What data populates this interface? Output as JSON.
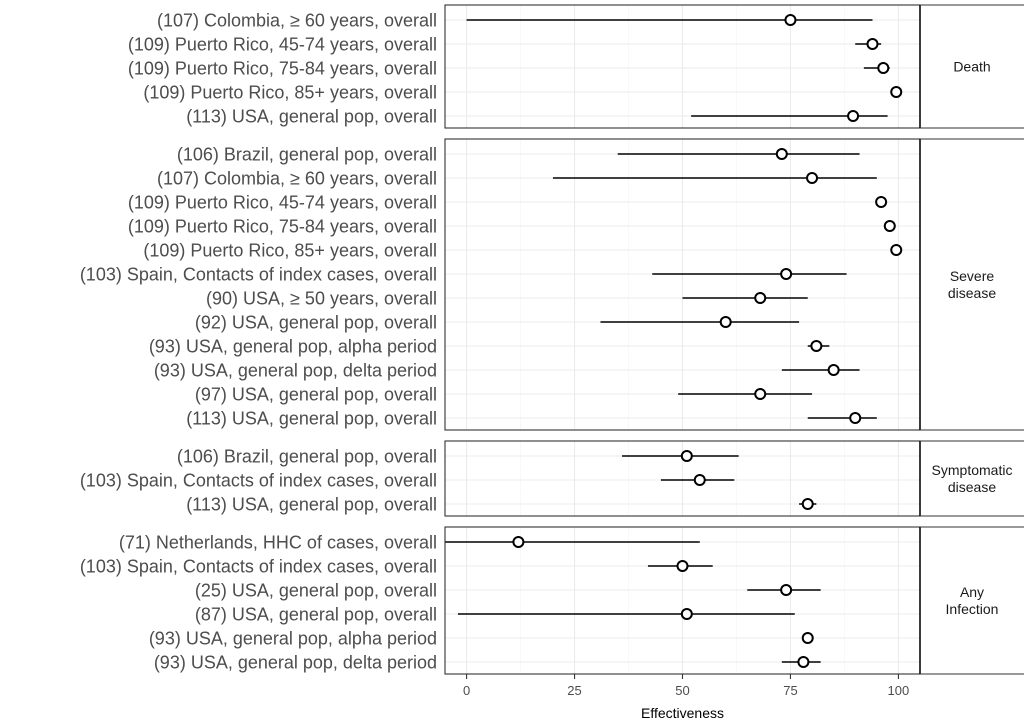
{
  "chart_data": {
    "type": "forest",
    "xlabel": "Effectiveness",
    "xlim": [
      -5,
      105
    ],
    "xticks": [
      0,
      25,
      50,
      75,
      100
    ],
    "grid": true,
    "panels": [
      {
        "label": "Death",
        "rows": [
          {
            "label": "(107) Colombia, ≥ 60 years, overall",
            "estimate": 75,
            "lower": 0,
            "upper": 94
          },
          {
            "label": "(109) Puerto Rico, 45-74 years, overall",
            "estimate": 94,
            "lower": 90,
            "upper": 96
          },
          {
            "label": "(109) Puerto Rico, 75-84 years, overall",
            "estimate": 96.5,
            "lower": 92,
            "upper": 98
          },
          {
            "label": "(109) Puerto Rico, 85+ years, overall",
            "estimate": 99.5,
            "lower": 99,
            "upper": 100
          },
          {
            "label": "(113) USA, general pop, overall",
            "estimate": 89.5,
            "lower": 52,
            "upper": 97.5
          }
        ]
      },
      {
        "label": "Severe disease",
        "rows": [
          {
            "label": "(106) Brazil, general pop, overall",
            "estimate": 73,
            "lower": 35,
            "upper": 91
          },
          {
            "label": "(107) Colombia, ≥ 60 years, overall",
            "estimate": 80,
            "lower": 20,
            "upper": 95
          },
          {
            "label": "(109) Puerto Rico, 45-74 years, overall",
            "estimate": 96,
            "lower": 95,
            "upper": 97
          },
          {
            "label": "(109) Puerto Rico, 75-84 years, overall",
            "estimate": 98,
            "lower": 97,
            "upper": 99
          },
          {
            "label": "(109) Puerto Rico, 85+ years, overall",
            "estimate": 99.5,
            "lower": 99,
            "upper": 100
          },
          {
            "label": "(103) Spain, Contacts of index cases, overall",
            "estimate": 74,
            "lower": 43,
            "upper": 88
          },
          {
            "label": "(90) USA, ≥ 50 years, overall",
            "estimate": 68,
            "lower": 50,
            "upper": 79
          },
          {
            "label": "(92) USA, general pop, overall",
            "estimate": 60,
            "lower": 31,
            "upper": 77
          },
          {
            "label": "(93) USA, general pop, alpha period",
            "estimate": 81,
            "lower": 79,
            "upper": 84
          },
          {
            "label": "(93) USA, general pop, delta period",
            "estimate": 85,
            "lower": 73,
            "upper": 91
          },
          {
            "label": "(97) USA, general pop, overall",
            "estimate": 68,
            "lower": 49,
            "upper": 80
          },
          {
            "label": "(113) USA, general pop, overall",
            "estimate": 90,
            "lower": 79,
            "upper": 95
          }
        ]
      },
      {
        "label": "Symptomatic disease",
        "rows": [
          {
            "label": "(106) Brazil, general pop, overall",
            "estimate": 51,
            "lower": 36,
            "upper": 63
          },
          {
            "label": "(103) Spain, Contacts of index cases, overall",
            "estimate": 54,
            "lower": 45,
            "upper": 62
          },
          {
            "label": "(113) USA, general pop, overall",
            "estimate": 79,
            "lower": 77,
            "upper": 81
          }
        ]
      },
      {
        "label": "Any Infection",
        "rows": [
          {
            "label": "(71) Netherlands, HHC of cases, overall",
            "estimate": 12,
            "lower": -5,
            "upper": 54
          },
          {
            "label": "(103) Spain, Contacts of index cases, overall",
            "estimate": 50,
            "lower": 42,
            "upper": 57
          },
          {
            "label": "(25) USA, general pop, overall",
            "estimate": 74,
            "lower": 65,
            "upper": 82
          },
          {
            "label": "(87) USA, general pop, overall",
            "estimate": 51,
            "lower": -2,
            "upper": 76
          },
          {
            "label": "(93) USA, general pop, alpha period",
            "estimate": 79,
            "lower": 78,
            "upper": 80
          },
          {
            "label": "(93) USA, general pop, delta period",
            "estimate": 78,
            "lower": 73,
            "upper": 82
          }
        ]
      }
    ]
  }
}
